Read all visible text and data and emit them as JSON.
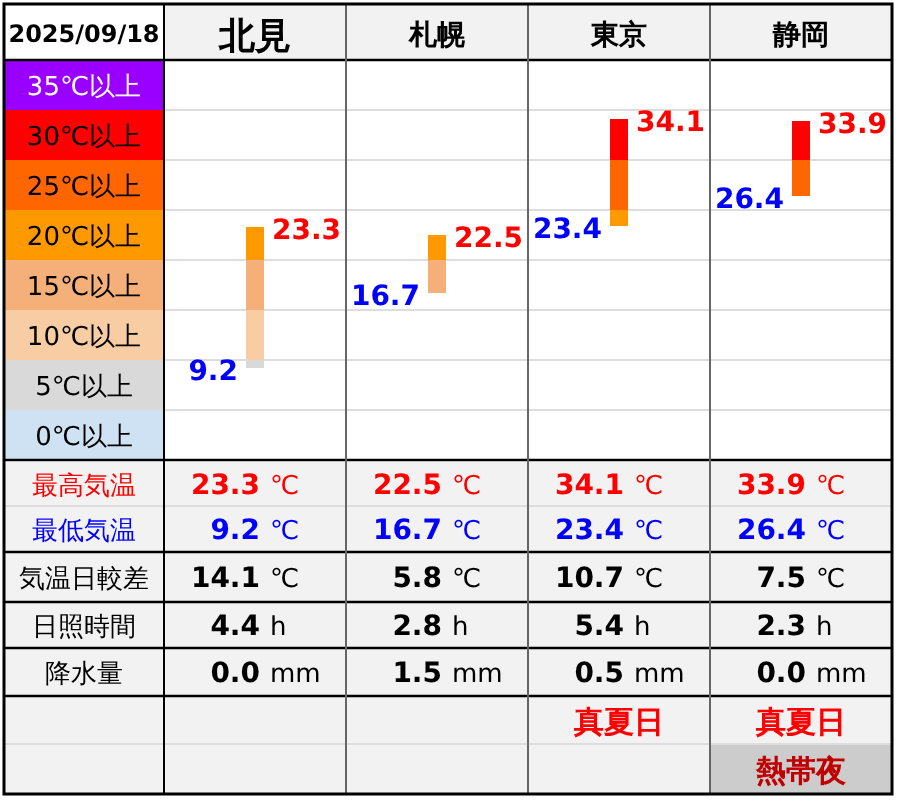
{
  "chart_data": {
    "type": "bar",
    "title": "2025/09/18",
    "categories": [
      "北見",
      "札幌",
      "東京",
      "静岡"
    ],
    "base": [
      9.2,
      16.7,
      23.4,
      26.4
    ],
    "values": [
      14.1,
      5.8,
      10.7,
      7.5
    ],
    "ylim": [
      0,
      40
    ],
    "yticks": [
      {
        "value": 0,
        "label": "0℃以上"
      },
      {
        "value": 5,
        "label": "5℃以上"
      },
      {
        "value": 10,
        "label": "10℃以上"
      },
      {
        "value": 15,
        "label": "15℃以上"
      },
      {
        "value": 20,
        "label": "20℃以上"
      },
      {
        "value": 25,
        "label": "25℃以上"
      },
      {
        "value": 30,
        "label": "30℃以上"
      },
      {
        "value": 35,
        "label": "35℃以上"
      },
      {
        "value": 40,
        "label": null
      }
    ],
    "grid": "y",
    "annotations": [
      {
        "text": "23.3",
        "x": "北見",
        "y": 23.3
      },
      {
        "text": "9.2",
        "x": "北見",
        "y": 9.2
      },
      {
        "text": "22.5",
        "x": "札幌",
        "y": 22.5
      },
      {
        "text": "16.7",
        "x": "札幌",
        "y": 16.7
      },
      {
        "text": "34.1",
        "x": "東京",
        "y": 34.1
      },
      {
        "text": "23.4",
        "x": "東京",
        "y": 23.4
      },
      {
        "text": "33.9",
        "x": "静岡",
        "y": 33.9
      },
      {
        "text": "26.4",
        "x": "静岡",
        "y": 26.4
      },
      "最高気温",
      "23.3",
      "℃",
      "22.5",
      "℃",
      "34.1",
      "℃",
      "33.9",
      "℃",
      "最低気温",
      "9.2",
      "℃",
      "16.7",
      "℃",
      "23.4",
      "℃",
      "26.4",
      "℃",
      "気温日較差",
      "14.1",
      "℃",
      "5.8",
      "℃",
      "10.7",
      "℃",
      "7.5",
      "℃",
      "日照時間",
      "4.4",
      "h",
      "2.8",
      "h",
      "5.4",
      "h",
      "2.3",
      "h",
      "降水量",
      "0.0",
      "mm",
      "1.5",
      "mm",
      "0.5",
      "mm",
      "0.0",
      "mm",
      "真夏日",
      "真夏日",
      "熱帯夜"
    ]
  }
}
